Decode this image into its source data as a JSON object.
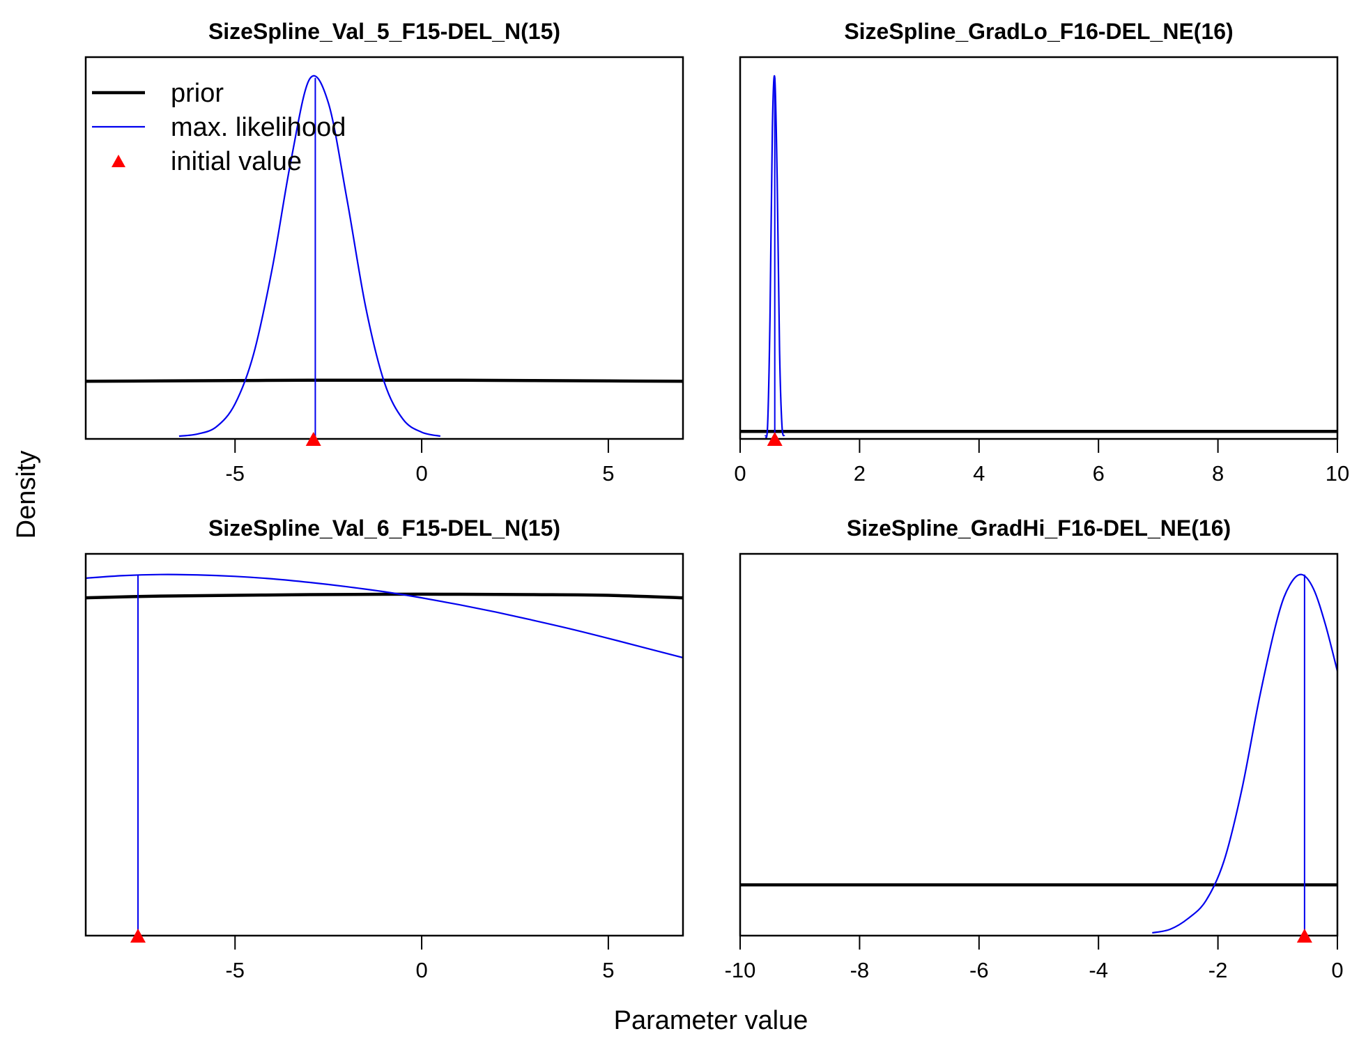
{
  "figure": {
    "ylabel": "Density",
    "xlabel": "Parameter value",
    "legend": {
      "placement": "top-left of first panel",
      "entries": [
        {
          "label": "prior",
          "kind": "line",
          "color": "#000000"
        },
        {
          "label": "max. likelihood",
          "kind": "line",
          "color": "#0000ee"
        },
        {
          "label": "initial value",
          "kind": "triangle",
          "color": "#ff0000"
        }
      ]
    }
  },
  "chart_data": [
    {
      "type": "line",
      "title": "SizeSpline_Val_5_F15-DEL_N(15)",
      "xlim": [
        -9,
        7
      ],
      "ylim": [
        0,
        1.05
      ],
      "xticks": [
        -5,
        0,
        5
      ],
      "xtick_labels": [
        "-5",
        "0",
        "5"
      ],
      "initial_value": -2.9,
      "series": [
        {
          "key": "prior",
          "x": [
            -9,
            -7,
            -5,
            -3,
            -1,
            1,
            3,
            5,
            7
          ],
          "y": [
            0.153,
            0.154,
            0.155,
            0.156,
            0.156,
            0.156,
            0.155,
            0.154,
            0.153
          ]
        },
        {
          "key": "max. likelihood",
          "x": [
            -6.5,
            -6.0,
            -5.5,
            -5.0,
            -4.5,
            -4.0,
            -3.5,
            -3.0,
            -2.5,
            -2.0,
            -1.5,
            -1.0,
            -0.5,
            0.0,
            0.5
          ],
          "y": [
            0.0,
            0.006,
            0.026,
            0.09,
            0.23,
            0.47,
            0.77,
            0.997,
            0.93,
            0.66,
            0.36,
            0.15,
            0.047,
            0.011,
            0.0
          ]
        }
      ],
      "mle": {
        "x": -2.85,
        "y": 1.0
      }
    },
    {
      "type": "line",
      "title": "SizeSpline_GradLo_F16-DEL_NE(16)",
      "xlim": [
        0,
        10
      ],
      "ylim": [
        0,
        1.05
      ],
      "xticks": [
        0,
        2,
        4,
        6,
        8,
        10
      ],
      "xtick_labels": [
        "0",
        "2",
        "4",
        "6",
        "8",
        "10"
      ],
      "initial_value": 0.58,
      "series": [
        {
          "key": "prior",
          "x": [
            0,
            2,
            4,
            6,
            8,
            10
          ],
          "y": [
            0.013,
            0.013,
            0.013,
            0.013,
            0.013,
            0.013
          ]
        },
        {
          "key": "max. likelihood",
          "x": [
            0.42,
            0.46,
            0.5,
            0.54,
            0.58,
            0.62,
            0.66,
            0.7,
            0.74
          ],
          "y": [
            0.0,
            0.03,
            0.33,
            0.86,
            1.0,
            0.72,
            0.24,
            0.03,
            0.0
          ]
        }
      ],
      "mle": {
        "x": 0.58,
        "y": 1.0
      }
    },
    {
      "type": "line",
      "title": "SizeSpline_Val_6_F15-DEL_N(15)",
      "xlim": [
        -9,
        7
      ],
      "ylim": [
        0,
        1.05
      ],
      "xticks": [
        -5,
        0,
        5
      ],
      "xtick_labels": [
        "-5",
        "0",
        "5"
      ],
      "initial_value": -7.6,
      "series": [
        {
          "key": "prior",
          "x": [
            -9,
            -7,
            -5,
            -3,
            -1,
            1,
            3,
            5,
            7
          ],
          "y": [
            0.935,
            0.94,
            0.942,
            0.944,
            0.945,
            0.945,
            0.944,
            0.942,
            0.935
          ]
        },
        {
          "key": "max. likelihood",
          "x": [
            -9,
            -8,
            -7,
            -6,
            -5,
            -4,
            -3,
            -2,
            -1,
            0,
            1,
            2,
            3,
            4,
            5,
            6,
            7
          ],
          "y": [
            0.99,
            0.997,
            1.0,
            0.999,
            0.995,
            0.988,
            0.978,
            0.966,
            0.952,
            0.935,
            0.916,
            0.895,
            0.872,
            0.848,
            0.822,
            0.795,
            0.768
          ]
        }
      ],
      "mle": {
        "x": -7.6,
        "y": 1.0
      }
    },
    {
      "type": "line",
      "title": "SizeSpline_GradHi_F16-DEL_NE(16)",
      "xlim": [
        -10,
        0
      ],
      "ylim": [
        0,
        1.05
      ],
      "xticks": [
        -10,
        -8,
        -6,
        -4,
        -2,
        0
      ],
      "xtick_labels": [
        "-10",
        "-8",
        "-6",
        "-4",
        "-2",
        "0"
      ],
      "initial_value": -0.55,
      "series": [
        {
          "key": "prior",
          "x": [
            -10,
            -8,
            -6,
            -4,
            -2,
            0
          ],
          "y": [
            0.134,
            0.134,
            0.134,
            0.134,
            0.134,
            0.134
          ]
        },
        {
          "key": "max. likelihood",
          "x": [
            -3.1,
            -2.8,
            -2.5,
            -2.2,
            -1.9,
            -1.6,
            -1.3,
            -1.0,
            -0.8,
            -0.6,
            -0.4,
            -0.2,
            0.0
          ],
          "y": [
            0.0,
            0.01,
            0.04,
            0.09,
            0.2,
            0.4,
            0.66,
            0.88,
            0.97,
            1.0,
            0.96,
            0.86,
            0.73
          ]
        }
      ],
      "mle": {
        "x": -0.55,
        "y": 1.0
      }
    }
  ]
}
